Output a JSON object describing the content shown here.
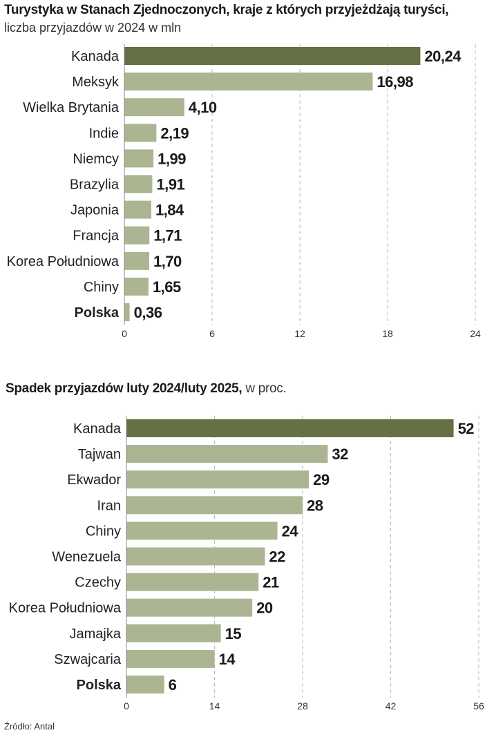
{
  "colors": {
    "highlight": "#657144",
    "bar": "#abb592",
    "grid": "#b8b8b8",
    "text": "#222222"
  },
  "chart_data": [
    {
      "type": "bar",
      "orientation": "horizontal",
      "title": "Turystyka w Stanach Zjednoczonych, kraje z których przyjeżdżają turyści,",
      "subtitle": "liczba przyjazdów w 2024 w mln",
      "categories": [
        "Kanada",
        "Meksyk",
        "Wielka Brytania",
        "Indie",
        "Niemcy",
        "Brazylia",
        "Japonia",
        "Francja",
        "Korea Południowa",
        "Chiny",
        "Polska"
      ],
      "values": [
        20.24,
        16.98,
        4.1,
        2.19,
        1.99,
        1.91,
        1.84,
        1.71,
        1.7,
        1.65,
        0.36
      ],
      "value_labels": [
        "20,24",
        "16,98",
        "4,10",
        "2,19",
        "1,99",
        "1,91",
        "1,84",
        "1,71",
        "1,70",
        "1,65",
        "0,36"
      ],
      "highlight_index": 0,
      "bold_category_index": 10,
      "xlim": [
        0,
        24
      ],
      "xticks": [
        0,
        6,
        12,
        18,
        24
      ],
      "grid": true
    },
    {
      "type": "bar",
      "orientation": "horizontal",
      "title": "Spadek przyjazdów luty 2024/luty 2025,",
      "subtitle": "w proc.",
      "categories": [
        "Kanada",
        "Tajwan",
        "Ekwador",
        "Iran",
        "Chiny",
        "Wenezuela",
        "Czechy",
        "Korea Południowa",
        "Jamajka",
        "Szwajcaria",
        "Polska"
      ],
      "values": [
        52,
        32,
        29,
        28,
        24,
        22,
        21,
        20,
        15,
        14,
        6
      ],
      "value_labels": [
        "52",
        "32",
        "29",
        "28",
        "24",
        "22",
        "21",
        "20",
        "15",
        "14",
        "6"
      ],
      "highlight_index": 0,
      "bold_category_index": 10,
      "xlim": [
        0,
        56
      ],
      "xticks": [
        0,
        14,
        28,
        42,
        56
      ],
      "grid": true
    }
  ],
  "source": "Źródło: Antal"
}
